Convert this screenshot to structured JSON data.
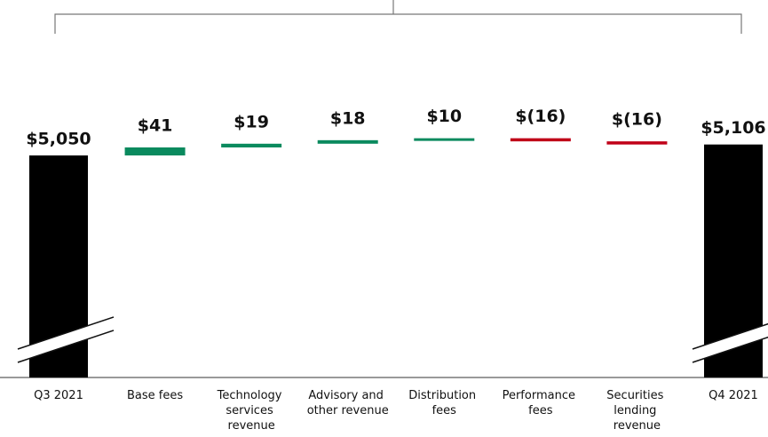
{
  "chart_data": {
    "type": "waterfall",
    "categories": [
      "Q3 2021",
      "Base fees",
      "Technology services revenue",
      "Advisory and other revenue",
      "Distribution fees",
      "Performance fees",
      "Securities lending revenue",
      "Q4 2021"
    ],
    "values": [
      5050,
      41,
      19,
      18,
      10,
      -16,
      -16,
      5106
    ],
    "value_labels": [
      "$5,050",
      "$41",
      "$19",
      "$18",
      "$10",
      "$(16)",
      "$(16)",
      "$5,106"
    ],
    "colors": {
      "total": "#000000",
      "increase": "#0a8a5e",
      "decrease": "#c00018"
    }
  }
}
